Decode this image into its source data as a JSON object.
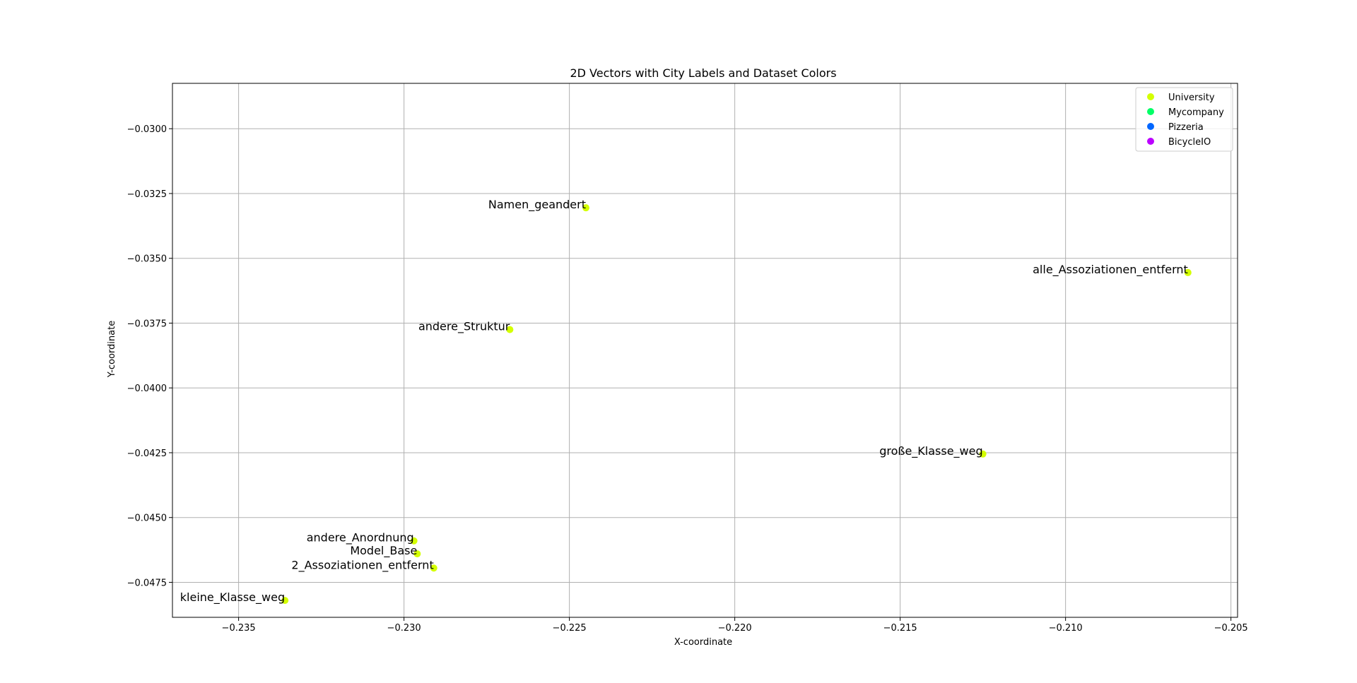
{
  "chart_data": {
    "type": "scatter",
    "title": "2D Vectors with City Labels and Dataset Colors",
    "xlabel": "X-coordinate",
    "ylabel": "Y-coordinate",
    "xlim": [
      -0.237,
      -0.2048
    ],
    "ylim": [
      -0.04885,
      -0.02825
    ],
    "xticks": [
      -0.235,
      -0.23,
      -0.225,
      -0.22,
      -0.215,
      -0.21,
      -0.205
    ],
    "xtick_labels": [
      "−0.235",
      "−0.230",
      "−0.225",
      "−0.220",
      "−0.215",
      "−0.210",
      "−0.205"
    ],
    "yticks": [
      -0.03,
      -0.0325,
      -0.035,
      -0.0375,
      -0.04,
      -0.0425,
      -0.045,
      -0.0475
    ],
    "ytick_labels": [
      "−0.0300",
      "−0.0325",
      "−0.0350",
      "−0.0375",
      "−0.0400",
      "−0.0425",
      "−0.0450",
      "−0.0475"
    ],
    "grid": true,
    "legend_position": "top-right",
    "series": [
      {
        "name": "University",
        "color": "#d4ff00",
        "points": [
          {
            "x": -0.2245,
            "y": -0.03305,
            "label": "Namen_geandert"
          },
          {
            "x": -0.2063,
            "y": -0.03555,
            "label": "alle_Assoziationen_entfernt"
          },
          {
            "x": -0.2268,
            "y": -0.03775,
            "label": "andere_Struktur"
          },
          {
            "x": -0.2125,
            "y": -0.04255,
            "label": "große_Klasse_weg"
          },
          {
            "x": -0.2297,
            "y": -0.0459,
            "label": "andere_Anordnung"
          },
          {
            "x": -0.2296,
            "y": -0.0464,
            "label": "Model_Base"
          },
          {
            "x": -0.2291,
            "y": -0.04695,
            "label": "2_Assoziationen_entfernt"
          },
          {
            "x": -0.2336,
            "y": -0.0482,
            "label": "kleine_Klasse_weg"
          }
        ]
      },
      {
        "name": "Mycompany",
        "color": "#00ff66",
        "points": []
      },
      {
        "name": "Pizzeria",
        "color": "#0066ff",
        "points": []
      },
      {
        "name": "BicycleIO",
        "color": "#bb00ff",
        "points": []
      }
    ]
  }
}
